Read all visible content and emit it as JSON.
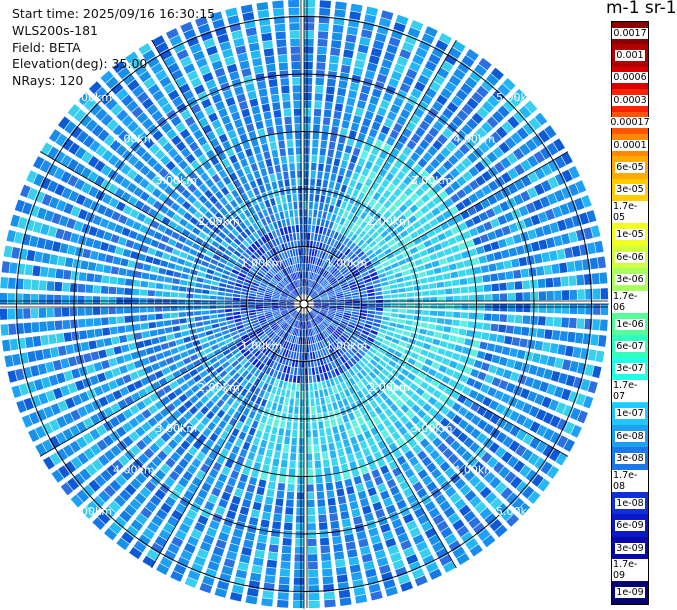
{
  "info": {
    "start_time": "Start time: 2025/09/16 16:30:15",
    "instrument": "WLS200s-181",
    "field": "Field: BETA",
    "elevation": "Elevation(deg): 35.00",
    "nrays": "NRays: 120"
  },
  "units_label": "m-1 sr-1",
  "chart_data": {
    "type": "heatmap",
    "projection": "polar-ppi",
    "field": "BETA",
    "elevation_deg": 35.0,
    "n_rays": 120,
    "range_rings_km": [
      1,
      2,
      3,
      4,
      5
    ],
    "range_ring_labels": [
      "1.00km",
      "2.00km",
      "3.00km",
      "4.00km",
      "5.00km"
    ],
    "max_range_km": 5.3,
    "colorbar": {
      "ticks": [
        "0.0017",
        "0.001",
        "0.0006",
        "0.0003",
        "0.00017",
        "0.0001",
        "6e-05",
        "3e-05",
        "1.7e-05",
        "1e-05",
        "6e-06",
        "3e-06",
        "1.7e-06",
        "1e-06",
        "6e-07",
        "3e-07",
        "1.7e-07",
        "1e-07",
        "6e-08",
        "3e-08",
        "1.7e-08",
        "1e-08",
        "6e-09",
        "3e-09",
        "1.7e-09",
        "1e-09"
      ],
      "colors": [
        "#8b0000",
        "#b00000",
        "#d80000",
        "#ff2200",
        "#ff5500",
        "#ff8800",
        "#ffaa00",
        "#ffcc00",
        "#ffee00",
        "#f0ff20",
        "#d0ff40",
        "#a8ff60",
        "#80ff80",
        "#55ff99",
        "#30ffc0",
        "#20ffe8",
        "#20eaff",
        "#20c8ff",
        "#1ea0f0",
        "#1a78e8",
        "#1550e0",
        "#1030d8",
        "#0a18c8",
        "#0808a8",
        "#06068a",
        "#040470"
      ]
    }
  }
}
